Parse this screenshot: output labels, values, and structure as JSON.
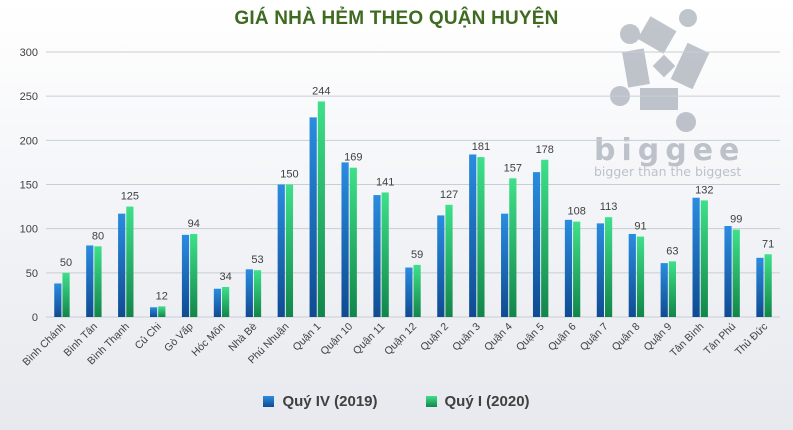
{
  "title": "GIÁ NHÀ HẺM THEO QUẬN HUYỆN",
  "watermark": {
    "brand": "biggee",
    "tagline": "bigger than the biggest"
  },
  "colors": {
    "series_1": "#1a6fc4",
    "series_2": "#22c46b",
    "title": "#3e6b21",
    "gridline": "#c9cdd4"
  },
  "chart_data": {
    "type": "bar",
    "ylim": [
      0,
      300
    ],
    "yticks": [
      0,
      50,
      100,
      150,
      200,
      250,
      300
    ],
    "grid": true,
    "legend_position": "bottom",
    "categories": [
      "Bình Chánh",
      "Bình Tân",
      "Bình Thạnh",
      "Củ Chi",
      "Gò Vấp",
      "Hóc Môn",
      "Nhà Bè",
      "Phú Nhuận",
      "Quận 1",
      "Quận 10",
      "Quận 11",
      "Quận 12",
      "Quận 2",
      "Quận 3",
      "Quận 4",
      "Quận 5",
      "Quận 6",
      "Quận 7",
      "Quận 8",
      "Quận 9",
      "Tân Bình",
      "Tân Phú",
      "Thủ Đức"
    ],
    "series": [
      {
        "name": "Quý IV (2019)",
        "values": [
          38,
          81,
          117,
          11,
          93,
          32,
          54,
          150,
          226,
          175,
          138,
          56,
          115,
          184,
          117,
          164,
          110,
          106,
          94,
          61,
          135,
          103,
          67
        ]
      },
      {
        "name": "Quý I (2020)",
        "values": [
          50,
          80,
          125,
          12,
          94,
          34,
          53,
          150,
          244,
          169,
          141,
          59,
          127,
          181,
          157,
          178,
          108,
          113,
          91,
          63,
          132,
          99,
          71
        ]
      }
    ],
    "data_labels_series": 1
  }
}
